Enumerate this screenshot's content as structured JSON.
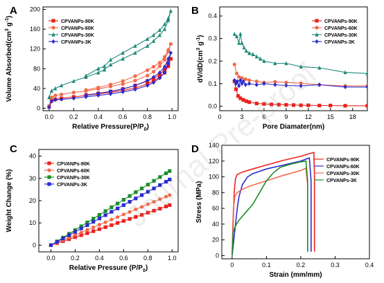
{
  "chart_data": [
    {
      "panel": "A",
      "type": "line",
      "xlabel": "Relative Pressure(P/P0)",
      "ylabel": "Volume Absorbed(cm3 g-1)",
      "xlim": [
        -0.05,
        1.05
      ],
      "ylim": [
        -5,
        205
      ],
      "xticks": [
        0.0,
        0.2,
        0.4,
        0.6,
        0.8,
        1.0
      ],
      "yticks": [
        0,
        40,
        80,
        120,
        160,
        200
      ],
      "legend_position": "top-left",
      "series": [
        {
          "name": "CPVANPs-90K",
          "color": "#e8231f",
          "marker": "square",
          "x": [
            0.0,
            0.02,
            0.05,
            0.1,
            0.2,
            0.3,
            0.4,
            0.5,
            0.6,
            0.7,
            0.8,
            0.85,
            0.9,
            0.94,
            0.97,
            0.99,
            0.97,
            0.94,
            0.9,
            0.85,
            0.8,
            0.7,
            0.6,
            0.5,
            0.4,
            0.3
          ],
          "y": [
            3,
            15,
            18,
            20,
            23,
            26,
            29,
            32,
            36,
            41,
            49,
            55,
            63,
            72,
            85,
            100,
            92,
            78,
            68,
            60,
            55,
            46,
            39,
            34,
            30,
            27
          ]
        },
        {
          "name": "CPVANPs-60K",
          "color": "#f06a4a",
          "marker": "circle",
          "x": [
            0.0,
            0.02,
            0.05,
            0.1,
            0.2,
            0.3,
            0.4,
            0.5,
            0.6,
            0.7,
            0.8,
            0.85,
            0.9,
            0.94,
            0.97,
            0.99,
            0.97,
            0.94,
            0.9,
            0.85,
            0.8,
            0.7,
            0.6,
            0.5,
            0.4,
            0.3
          ],
          "y": [
            5,
            22,
            26,
            28,
            32,
            35,
            39,
            44,
            49,
            56,
            66,
            74,
            85,
            98,
            115,
            130,
            118,
            104,
            92,
            84,
            77,
            65,
            55,
            48,
            42,
            37
          ]
        },
        {
          "name": "CPVANPs-30K",
          "color": "#1f8a78",
          "marker": "triangle",
          "x": [
            0.0,
            0.02,
            0.05,
            0.1,
            0.2,
            0.3,
            0.4,
            0.45,
            0.5,
            0.6,
            0.7,
            0.8,
            0.85,
            0.9,
            0.94,
            0.97,
            0.99,
            0.97,
            0.94,
            0.9,
            0.85,
            0.8,
            0.7,
            0.6,
            0.5,
            0.45,
            0.4,
            0.3
          ],
          "y": [
            22,
            35,
            40,
            46,
            55,
            63,
            72,
            78,
            88,
            100,
            112,
            126,
            136,
            148,
            160,
            178,
            197,
            182,
            170,
            158,
            148,
            140,
            126,
            112,
            98,
            85,
            80,
            66
          ]
        },
        {
          "name": "CPVANPs-3K",
          "color": "#2b2bd0",
          "marker": "diamond",
          "x": [
            0.0,
            0.02,
            0.05,
            0.1,
            0.2,
            0.3,
            0.4,
            0.5,
            0.6,
            0.7,
            0.8,
            0.85,
            0.9,
            0.94,
            0.97,
            0.99,
            0.97,
            0.94,
            0.9,
            0.85,
            0.8,
            0.7,
            0.6,
            0.5,
            0.4,
            0.3
          ],
          "y": [
            2,
            14,
            17,
            18,
            20,
            23,
            26,
            29,
            33,
            38,
            46,
            52,
            61,
            72,
            90,
            112,
            100,
            84,
            72,
            63,
            56,
            46,
            39,
            34,
            30,
            26
          ]
        }
      ]
    },
    {
      "panel": "B",
      "type": "line",
      "xlabel": "Pore Diamater(nm)",
      "ylabel": "dV/dD(cm3 g-1)",
      "xlim": [
        0,
        20
      ],
      "ylim": [
        -0.02,
        0.44
      ],
      "xticks": [
        0,
        3,
        6,
        9,
        12,
        15,
        18
      ],
      "yticks": [
        0.0,
        0.1,
        0.2,
        0.3,
        0.4
      ],
      "legend_position": "top-right",
      "series": [
        {
          "name": "CPVANPs-90K",
          "color": "#e8231f",
          "marker": "square",
          "x": [
            2.0,
            2.2,
            2.5,
            2.8,
            3.2,
            3.6,
            4.0,
            5.0,
            6.0,
            7.0,
            8.0,
            9.0,
            10.0,
            11.0,
            12.0,
            13.5,
            15.0,
            17.0,
            20.0
          ],
          "y": [
            0.11,
            0.075,
            0.045,
            0.035,
            0.028,
            0.022,
            0.018,
            0.012,
            0.01,
            0.008,
            0.007,
            0.006,
            0.005,
            0.004,
            0.004,
            0.003,
            0.003,
            0.002,
            0.002
          ]
        },
        {
          "name": "CPVANPs-60K",
          "color": "#f06a4a",
          "marker": "circle",
          "x": [
            2.0,
            2.3,
            2.6,
            3.0,
            3.5,
            4.0,
            5.0,
            6.0,
            7.5,
            9.0,
            11.0,
            13.5,
            17.0,
            20.0
          ],
          "y": [
            0.185,
            0.145,
            0.13,
            0.125,
            0.12,
            0.115,
            0.11,
            0.105,
            0.108,
            0.105,
            0.102,
            0.095,
            0.09,
            0.09
          ]
        },
        {
          "name": "CPVANPs-30K",
          "color": "#1f8a78",
          "marker": "triangle",
          "x": [
            2.0,
            2.3,
            2.6,
            2.8,
            3.0,
            3.3,
            3.6,
            4.0,
            4.5,
            5.0,
            5.5,
            6.0,
            7.5,
            9.0,
            11.0,
            13.5,
            17.0,
            20.0
          ],
          "y": [
            0.32,
            0.31,
            0.28,
            0.32,
            0.28,
            0.26,
            0.245,
            0.235,
            0.23,
            0.22,
            0.21,
            0.2,
            0.19,
            0.19,
            0.175,
            0.17,
            0.15,
            0.145
          ]
        },
        {
          "name": "CPVANPs-3K",
          "color": "#2b2bd0",
          "marker": "diamond",
          "x": [
            2.0,
            2.2,
            2.4,
            2.6,
            2.8,
            3.0,
            3.2,
            3.5,
            4.0,
            5.0,
            6.0,
            7.5,
            9.0,
            11.0,
            13.5,
            17.0,
            20.0
          ],
          "y": [
            0.115,
            0.1,
            0.11,
            0.09,
            0.115,
            0.1,
            0.11,
            0.095,
            0.1,
            0.095,
            0.1,
            0.095,
            0.092,
            0.09,
            0.095,
            0.085,
            0.085
          ]
        }
      ]
    },
    {
      "panel": "C",
      "type": "line",
      "xlabel": "Relative Pressure (P/P0)",
      "ylabel": "Weight Change (%)",
      "xlim": [
        -0.1,
        1.05
      ],
      "ylim": [
        -3,
        43
      ],
      "xticks": [
        0.0,
        0.2,
        0.4,
        0.6,
        0.8,
        1.0
      ],
      "yticks": [
        0,
        10,
        20,
        30,
        40
      ],
      "legend_position": "top-left",
      "series": [
        {
          "name": "CPVANPs-90K",
          "color": "#e8231f",
          "marker": "square",
          "x": [
            0.0,
            0.05,
            0.1,
            0.15,
            0.2,
            0.25,
            0.3,
            0.35,
            0.4,
            0.45,
            0.5,
            0.55,
            0.6,
            0.65,
            0.7,
            0.75,
            0.8,
            0.85,
            0.9,
            0.95,
            0.98
          ],
          "y": [
            0.0,
            0.9,
            1.8,
            2.7,
            3.6,
            4.5,
            5.4,
            6.3,
            7.2,
            8.1,
            9.0,
            10.0,
            10.9,
            11.8,
            12.7,
            13.6,
            14.6,
            15.5,
            16.4,
            17.4,
            18.0
          ]
        },
        {
          "name": "CPVANPs-60K",
          "color": "#f06a4a",
          "marker": "circle",
          "x": [
            0.0,
            0.05,
            0.1,
            0.15,
            0.2,
            0.25,
            0.3,
            0.35,
            0.4,
            0.45,
            0.5,
            0.55,
            0.6,
            0.65,
            0.7,
            0.75,
            0.8,
            0.85,
            0.9,
            0.95,
            0.98
          ],
          "y": [
            0.0,
            1.1,
            2.3,
            3.4,
            4.6,
            5.7,
            6.9,
            8.0,
            9.2,
            10.3,
            11.5,
            12.6,
            13.8,
            14.9,
            16.1,
            17.2,
            18.4,
            19.5,
            20.7,
            21.8,
            22.5
          ]
        },
        {
          "name": "CPVANPs-30K",
          "color": "#1a8c2a",
          "marker": "square",
          "x": [
            0.0,
            0.05,
            0.1,
            0.15,
            0.2,
            0.25,
            0.3,
            0.35,
            0.4,
            0.45,
            0.5,
            0.55,
            0.6,
            0.65,
            0.7,
            0.75,
            0.8,
            0.85,
            0.9,
            0.95,
            0.98
          ],
          "y": [
            0.0,
            1.7,
            3.4,
            5.1,
            6.8,
            8.5,
            10.2,
            11.9,
            13.6,
            15.3,
            17.0,
            18.7,
            20.4,
            22.1,
            23.8,
            25.5,
            27.2,
            28.9,
            30.6,
            32.3,
            33.3
          ]
        },
        {
          "name": "CPVANPs-3K",
          "color": "#2b2bd0",
          "marker": "square",
          "x": [
            0.0,
            0.05,
            0.1,
            0.15,
            0.2,
            0.25,
            0.3,
            0.35,
            0.4,
            0.45,
            0.5,
            0.55,
            0.6,
            0.65,
            0.7,
            0.75,
            0.8,
            0.85,
            0.9,
            0.95,
            0.98
          ],
          "y": [
            0.0,
            1.5,
            3.0,
            4.5,
            6.0,
            7.5,
            9.0,
            10.5,
            12.0,
            13.5,
            15.0,
            16.5,
            18.0,
            19.5,
            21.0,
            22.5,
            24.0,
            25.5,
            27.0,
            28.5,
            29.5
          ]
        }
      ]
    },
    {
      "panel": "D",
      "type": "line",
      "xlabel": "Strain (mm/mm)",
      "ylabel": "Stress (MPa)",
      "xlim": [
        -0.03,
        0.4
      ],
      "ylim": [
        -4,
        140
      ],
      "xticks": [
        0.0,
        0.1,
        0.2,
        0.3,
        0.4
      ],
      "yticks": [
        0,
        20,
        40,
        60,
        80,
        100,
        120,
        140
      ],
      "legend_position": "top-right",
      "series": [
        {
          "name": "CPVANPs-90K",
          "color": "#e8231f",
          "x": [
            0.0,
            0.003,
            0.006,
            0.01,
            0.015,
            0.03,
            0.06,
            0.1,
            0.15,
            0.2,
            0.23,
            0.238,
            0.24,
            0.24
          ],
          "y": [
            0,
            40,
            80,
            98,
            103,
            106,
            110,
            115,
            121,
            126,
            130,
            131,
            100,
            5
          ]
        },
        {
          "name": "CPVANPs-60K",
          "color": "#2b2bd0",
          "x": [
            0.0,
            0.005,
            0.01,
            0.015,
            0.02,
            0.03,
            0.045,
            0.06,
            0.1,
            0.15,
            0.2,
            0.225,
            0.23,
            0.23
          ],
          "y": [
            0,
            20,
            40,
            60,
            75,
            90,
            100,
            104,
            110,
            115,
            120,
            124,
            95,
            5
          ]
        },
        {
          "name": "CPVANPs-30K",
          "color": "#f06a4a",
          "x": [
            0.0,
            0.002,
            0.004,
            0.008,
            0.015,
            0.03,
            0.05,
            0.1,
            0.15,
            0.2,
            0.215,
            0.22,
            0.22
          ],
          "y": [
            0,
            40,
            60,
            75,
            80,
            84,
            88,
            95,
            102,
            108,
            111,
            90,
            5
          ]
        },
        {
          "name": "CPVANPs-3K",
          "color": "#1a8c2a",
          "x": [
            0.0,
            0.003,
            0.01,
            0.02,
            0.04,
            0.06,
            0.08,
            0.1,
            0.12,
            0.14,
            0.17,
            0.2,
            0.215,
            0.22,
            0.22
          ],
          "y": [
            0,
            30,
            38,
            45,
            55,
            65,
            80,
            95,
            105,
            112,
            116,
            119,
            120,
            95,
            5
          ]
        }
      ]
    }
  ],
  "panel_labels": [
    "A",
    "B",
    "C",
    "D"
  ],
  "watermark": "Journal Pre-proof"
}
